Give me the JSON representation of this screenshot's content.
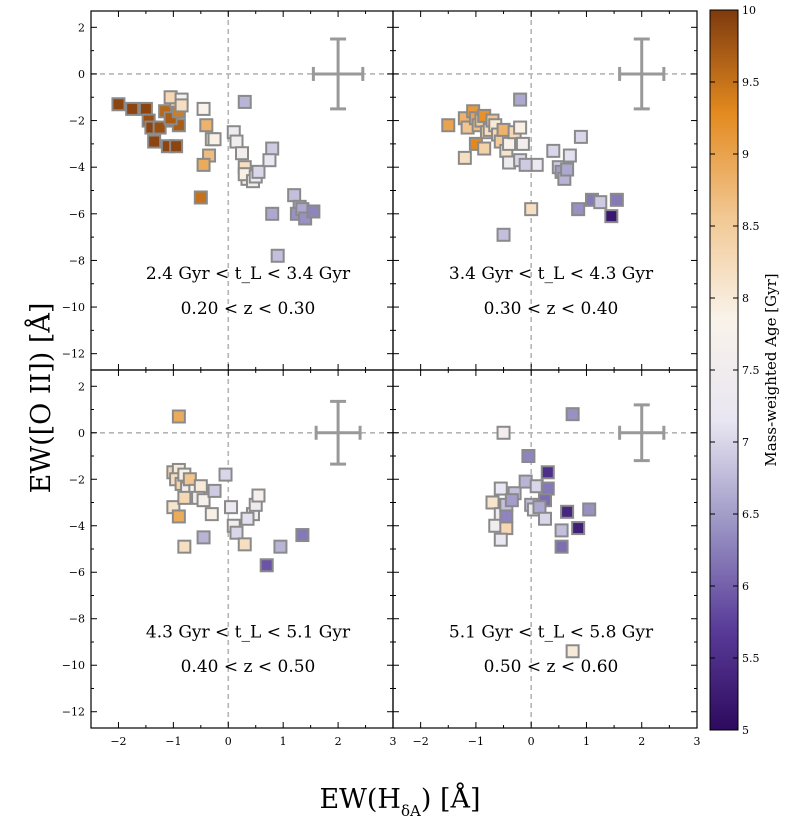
{
  "figure": {
    "xlabel_main": "EW(H",
    "xlabel_sub": "δA",
    "xlabel_tail": ") [Å]",
    "ylabel": "EW([O II]) [Å]",
    "colorbar_label": "Mass-weighted Age [Gyr]"
  },
  "chart_data": {
    "type": "scatter",
    "title": "",
    "xlabel": "EW(H_δA) [Å]",
    "ylabel": "EW([O II]) [Å]",
    "xlim": [
      -2.5,
      3
    ],
    "ylim": [
      -12.7,
      2.7
    ],
    "xticks": [
      -2,
      -1,
      0,
      1,
      2,
      3
    ],
    "yticks": [
      2,
      0,
      -2,
      -4,
      -6,
      -8,
      -10,
      -12
    ],
    "colorbar": {
      "label": "Mass-weighted Age [Gyr]",
      "range": [
        5,
        10
      ],
      "ticks": [
        5,
        5.5,
        6,
        6.5,
        7,
        7.5,
        8,
        8.5,
        9,
        9.5,
        10
      ],
      "tick_labels": [
        "5",
        "5.5",
        "6",
        "6.5",
        "7",
        "7.5",
        "8",
        "8.5",
        "9",
        "9.5",
        "10"
      ],
      "colors": [
        "#2d0a5e",
        "#5a3d9a",
        "#9b95c4",
        "#e8e6f2",
        "#f9f3ea",
        "#f2c792",
        "#e38a1f",
        "#7e3a0e"
      ]
    },
    "panels": [
      {
        "label_line1": "2.4 Gyr < t_L < 3.4 Gyr",
        "label_line2": "0.20 < z < 0.30",
        "errorbar": {
          "x": 2.0,
          "y": 0.0,
          "xerr": 0.45,
          "yerr": 1.5
        },
        "points": [
          [
            -2.0,
            -1.3,
            9.9
          ],
          [
            -1.75,
            -1.5,
            9.9
          ],
          [
            -1.5,
            -1.5,
            9.9
          ],
          [
            -1.45,
            -2.0,
            9.8
          ],
          [
            -1.4,
            -2.3,
            9.9
          ],
          [
            -1.25,
            -2.3,
            9.8
          ],
          [
            -1.35,
            -2.9,
            9.9
          ],
          [
            -1.1,
            -3.1,
            9.9
          ],
          [
            -0.95,
            -3.1,
            9.9
          ],
          [
            -1.0,
            -2.0,
            9.6
          ],
          [
            -0.9,
            -2.2,
            9.7
          ],
          [
            -1.15,
            -1.6,
            9.6
          ],
          [
            -1.05,
            -1.9,
            9.7
          ],
          [
            -0.9,
            -1.6,
            9.4
          ],
          [
            -0.95,
            -1.15,
            8.5
          ],
          [
            -1.05,
            -1.0,
            8.3
          ],
          [
            -0.85,
            -1.1,
            7.7
          ],
          [
            -0.85,
            -1.35,
            8.2
          ],
          [
            -0.45,
            -1.5,
            7.8
          ],
          [
            -0.4,
            -2.2,
            8.8
          ],
          [
            -0.3,
            -2.8,
            8.3
          ],
          [
            -0.25,
            -2.8,
            7.9
          ],
          [
            -0.35,
            -3.5,
            8.7
          ],
          [
            -0.45,
            -3.9,
            8.9
          ],
          [
            -0.5,
            -5.3,
            9.5
          ],
          [
            0.1,
            -2.5,
            7.4
          ],
          [
            0.15,
            -2.9,
            7.5
          ],
          [
            0.25,
            -3.4,
            7.6
          ],
          [
            0.3,
            -4.0,
            8.2
          ],
          [
            0.35,
            -4.5,
            8.0
          ],
          [
            0.3,
            -4.3,
            7.9
          ],
          [
            0.45,
            -4.6,
            7.5
          ],
          [
            0.5,
            -4.4,
            7.3
          ],
          [
            0.55,
            -4.2,
            7.0
          ],
          [
            0.8,
            -3.2,
            6.9
          ],
          [
            0.75,
            -3.7,
            7.2
          ],
          [
            0.8,
            -6.0,
            6.6
          ],
          [
            0.9,
            -7.8,
            6.8
          ],
          [
            0.3,
            -1.2,
            6.7
          ],
          [
            1.2,
            -5.2,
            6.8
          ],
          [
            1.3,
            -5.7,
            6.6
          ],
          [
            1.25,
            -6.0,
            6.4
          ],
          [
            1.35,
            -5.8,
            6.6
          ],
          [
            1.4,
            -6.2,
            6.4
          ],
          [
            1.55,
            -5.9,
            6.3
          ]
        ]
      },
      {
        "label_line1": "3.4 Gyr < t_L < 4.3 Gyr",
        "label_line2": "0.30 < z < 0.40",
        "errorbar": {
          "x": 2.0,
          "y": 0.0,
          "xerr": 0.4,
          "yerr": 1.5
        },
        "points": [
          [
            -1.5,
            -2.2,
            9.0
          ],
          [
            -1.2,
            -1.9,
            8.8
          ],
          [
            -1.15,
            -2.3,
            8.6
          ],
          [
            -1.05,
            -1.6,
            9.1
          ],
          [
            -1.0,
            -1.9,
            9.0
          ],
          [
            -0.95,
            -2.2,
            8.7
          ],
          [
            -0.9,
            -2.0,
            8.5
          ],
          [
            -0.85,
            -1.8,
            9.2
          ],
          [
            -0.8,
            -2.5,
            8.4
          ],
          [
            -0.75,
            -2.4,
            8.2
          ],
          [
            -0.7,
            -2.0,
            8.6
          ],
          [
            -0.65,
            -2.2,
            8.0
          ],
          [
            -0.6,
            -2.6,
            8.3
          ],
          [
            -0.55,
            -2.9,
            8.5
          ],
          [
            -0.5,
            -2.4,
            8.8
          ],
          [
            -0.45,
            -3.3,
            8.1
          ],
          [
            -0.4,
            -3.0,
            7.8
          ],
          [
            -0.3,
            -2.5,
            8.3
          ],
          [
            -0.2,
            -2.3,
            7.9
          ],
          [
            -0.15,
            -3.0,
            7.6
          ],
          [
            -1.2,
            -3.6,
            8.2
          ],
          [
            -1.0,
            -3.0,
            9.3
          ],
          [
            -0.85,
            -3.2,
            8.4
          ],
          [
            -0.4,
            -3.8,
            7.4
          ],
          [
            -0.2,
            -3.7,
            7.0
          ],
          [
            0.1,
            -3.9,
            7.3
          ],
          [
            0.4,
            -3.3,
            7.0
          ],
          [
            0.5,
            -4.0,
            6.9
          ],
          [
            0.55,
            -4.2,
            6.5
          ],
          [
            0.6,
            -4.5,
            6.7
          ],
          [
            0.65,
            -4.1,
            6.6
          ],
          [
            0.7,
            -3.5,
            7.1
          ],
          [
            0.9,
            -2.7,
            7.0
          ],
          [
            -0.1,
            -3.9,
            6.9
          ],
          [
            -0.5,
            -6.9,
            6.8
          ],
          [
            0.0,
            -5.8,
            8.2
          ],
          [
            0.85,
            -5.8,
            6.4
          ],
          [
            1.1,
            -5.4,
            6.2
          ],
          [
            1.25,
            -5.5,
            6.9
          ],
          [
            1.55,
            -5.4,
            6.2
          ],
          [
            1.45,
            -6.1,
            5.2
          ],
          [
            -0.2,
            -1.1,
            6.6
          ]
        ]
      },
      {
        "label_line1": "4.3 Gyr < t_L < 5.1 Gyr",
        "label_line2": "0.40 < z < 0.50",
        "errorbar": {
          "x": 2.0,
          "y": 0.0,
          "xerr": 0.4,
          "yerr": 1.35
        },
        "points": [
          [
            -0.9,
            0.7,
            8.9
          ],
          [
            -1.0,
            -1.7,
            8.3
          ],
          [
            -0.9,
            -1.6,
            8.0
          ],
          [
            -0.95,
            -2.0,
            8.2
          ],
          [
            -0.85,
            -2.2,
            8.4
          ],
          [
            -0.8,
            -1.8,
            7.9
          ],
          [
            -0.75,
            -2.4,
            7.6
          ],
          [
            -0.7,
            -2.0,
            8.6
          ],
          [
            -0.6,
            -2.5,
            7.8
          ],
          [
            -0.5,
            -2.3,
            8.0
          ],
          [
            -0.55,
            -2.8,
            7.5
          ],
          [
            -0.45,
            -2.9,
            7.7
          ],
          [
            -1.0,
            -3.2,
            8.1
          ],
          [
            -0.9,
            -3.6,
            8.9
          ],
          [
            -0.8,
            -2.8,
            8.3
          ],
          [
            -0.3,
            -3.5,
            7.9
          ],
          [
            -0.25,
            -2.5,
            6.9
          ],
          [
            -0.05,
            -1.8,
            7.0
          ],
          [
            0.05,
            -3.2,
            7.3
          ],
          [
            0.1,
            -4.0,
            7.6
          ],
          [
            0.15,
            -4.3,
            7.0
          ],
          [
            0.3,
            -4.8,
            8.2
          ],
          [
            0.45,
            -3.5,
            7.6
          ],
          [
            0.5,
            -3.1,
            7.4
          ],
          [
            0.55,
            -2.7,
            7.7
          ],
          [
            0.35,
            -3.7,
            7.1
          ],
          [
            0.95,
            -4.9,
            6.7
          ],
          [
            1.35,
            -4.4,
            6.2
          ],
          [
            0.7,
            -5.7,
            5.9
          ],
          [
            -0.45,
            -4.5,
            6.7
          ],
          [
            -0.8,
            -4.9,
            8.2
          ]
        ]
      },
      {
        "label_line1": "5.1 Gyr < t_L < 5.8 Gyr",
        "label_line2": "0.50 < z < 0.60",
        "errorbar": {
          "x": 2.0,
          "y": 0.0,
          "xerr": 0.4,
          "yerr": 1.2
        },
        "points": [
          [
            -0.5,
            0.0,
            7.6
          ],
          [
            0.75,
            0.8,
            6.4
          ],
          [
            -0.05,
            -1.0,
            6.3
          ],
          [
            0.3,
            -1.7,
            5.5
          ],
          [
            -0.55,
            -2.4,
            7.2
          ],
          [
            -0.3,
            -2.6,
            6.8
          ],
          [
            -0.1,
            -2.1,
            6.7
          ],
          [
            0.1,
            -2.3,
            7.0
          ],
          [
            0.3,
            -2.4,
            6.2
          ],
          [
            0.25,
            -2.9,
            6.1
          ],
          [
            -0.7,
            -3.0,
            8.1
          ],
          [
            -0.55,
            -3.5,
            7.3
          ],
          [
            -0.45,
            -3.1,
            6.8
          ],
          [
            -0.35,
            -2.9,
            6.5
          ],
          [
            -0.65,
            -4.0,
            7.5
          ],
          [
            -0.45,
            -4.1,
            8.3
          ],
          [
            -0.55,
            -4.6,
            7.2
          ],
          [
            -0.45,
            -3.6,
            6.3
          ],
          [
            0.0,
            -3.1,
            6.8
          ],
          [
            0.05,
            -3.3,
            7.3
          ],
          [
            0.15,
            -3.2,
            6.6
          ],
          [
            0.25,
            -3.7,
            7.0
          ],
          [
            0.55,
            -4.2,
            6.8
          ],
          [
            0.65,
            -3.4,
            5.4
          ],
          [
            0.85,
            -4.1,
            5.3
          ],
          [
            1.05,
            -3.3,
            6.4
          ],
          [
            0.55,
            -4.9,
            6.1
          ],
          [
            0.75,
            -9.4,
            8.0
          ]
        ]
      }
    ]
  }
}
